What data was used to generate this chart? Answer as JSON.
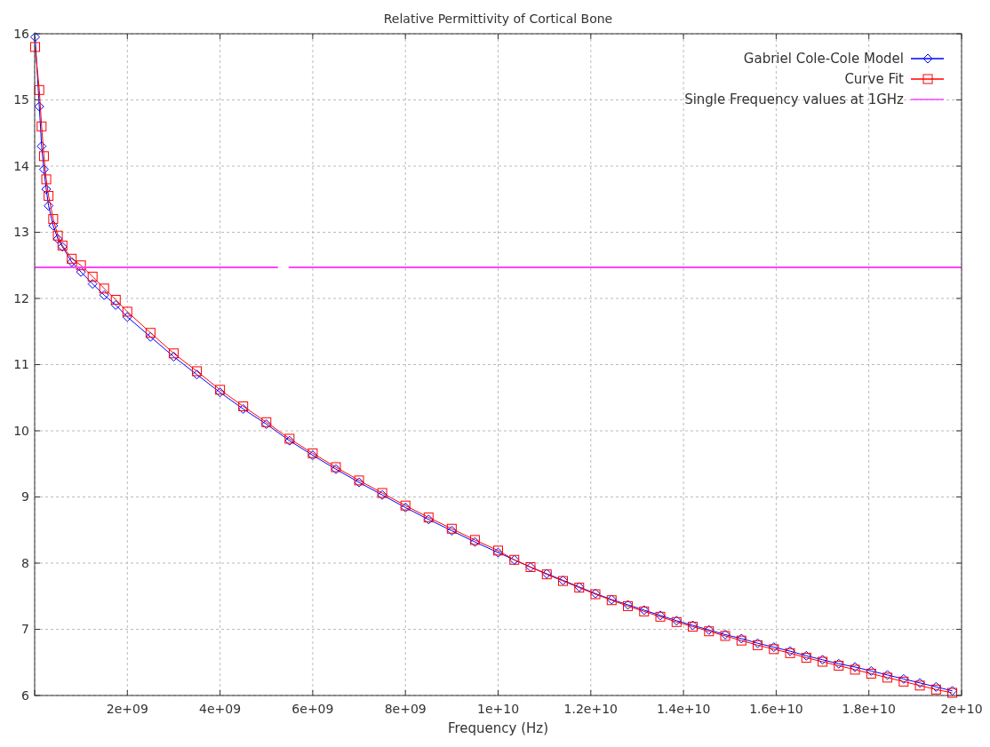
{
  "chart_data": {
    "type": "line",
    "title": "Relative Permittivity of Cortical Bone",
    "xlabel": "Frequency (Hz)",
    "x": [
      10000000.0,
      100000000.0,
      150000000.0,
      200000000.0,
      250000000.0,
      300000000.0,
      400000000.0,
      500000000.0,
      600000000.0,
      800000000.0,
      1000000000.0,
      1250000000.0,
      1500000000.0,
      1750000000.0,
      2000000000.0,
      2500000000.0,
      3000000000.0,
      3500000000.0,
      4000000000.0,
      4500000000.0,
      5000000000.0,
      5500000000.0,
      6000000000.0,
      6500000000.0,
      7000000000.0,
      7500000000.0,
      8000000000.0,
      8500000000.0,
      9000000000.0,
      9500000000.0,
      10000000000.0,
      10350000000.0,
      10700000000.0,
      11050000000.0,
      11400000000.0,
      11750000000.0,
      12100000000.0,
      12450000000.0,
      12800000000.0,
      13150000000.0,
      13500000000.0,
      13850000000.0,
      14200000000.0,
      14550000000.0,
      14900000000.0,
      15250000000.0,
      15600000000.0,
      15950000000.0,
      16300000000.0,
      16650000000.0,
      17000000000.0,
      17350000000.0,
      17700000000.0,
      18050000000.0,
      18400000000.0,
      18750000000.0,
      19100000000.0,
      19450000000.0,
      19800000000.0
    ],
    "series": [
      {
        "name": "Gabriel Cole-Cole Model",
        "color": "#0000ff",
        "marker": "diamond",
        "values": [
          15.95,
          14.9,
          14.3,
          13.95,
          13.65,
          13.4,
          13.1,
          12.9,
          12.78,
          12.55,
          12.4,
          12.22,
          12.05,
          11.9,
          11.72,
          11.42,
          11.12,
          10.85,
          10.58,
          10.33,
          10.1,
          9.85,
          9.63,
          9.42,
          9.22,
          9.03,
          8.84,
          8.66,
          8.49,
          8.32,
          8.16,
          8.05,
          7.94,
          7.84,
          7.74,
          7.64,
          7.54,
          7.45,
          7.37,
          7.29,
          7.21,
          7.13,
          7.06,
          6.99,
          6.92,
          6.86,
          6.79,
          6.73,
          6.67,
          6.6,
          6.54,
          6.48,
          6.43,
          6.37,
          6.31,
          6.25,
          6.19,
          6.13,
          6.07
        ]
      },
      {
        "name": "Curve Fit",
        "color": "#ff0000",
        "marker": "square",
        "values": [
          15.8,
          15.15,
          14.6,
          14.15,
          13.8,
          13.55,
          13.2,
          12.95,
          12.8,
          12.6,
          12.5,
          12.33,
          12.15,
          11.98,
          11.8,
          11.48,
          11.17,
          10.9,
          10.62,
          10.37,
          10.13,
          9.88,
          9.66,
          9.45,
          9.25,
          9.06,
          8.87,
          8.69,
          8.52,
          8.35,
          8.19,
          8.05,
          7.94,
          7.83,
          7.73,
          7.63,
          7.53,
          7.44,
          7.35,
          7.27,
          7.19,
          7.11,
          7.04,
          6.97,
          6.9,
          6.83,
          6.76,
          6.7,
          6.64,
          6.57,
          6.51,
          6.45,
          6.39,
          6.33,
          6.27,
          6.21,
          6.15,
          6.09,
          6.04
        ]
      },
      {
        "name": "Single Frequency values at 1GHz",
        "color": "#ff44ff",
        "marker": "none",
        "x": [
          0,
          5250000000.0,
          5300000000.0,
          5480000000.0,
          20000000000.0
        ],
        "values": [
          12.47,
          12.47,
          null,
          12.47,
          12.47
        ]
      }
    ],
    "xlim": [
      0,
      20000000000.0
    ],
    "ylim": [
      6,
      16
    ],
    "xticks": [
      {
        "value": 0,
        "label": null
      },
      {
        "value": 2000000000.0,
        "label": "2e+09"
      },
      {
        "value": 4000000000.0,
        "label": "4e+09"
      },
      {
        "value": 6000000000.0,
        "label": "6e+09"
      },
      {
        "value": 8000000000.0,
        "label": "8e+09"
      },
      {
        "value": 10000000000.0,
        "label": "1e+10"
      },
      {
        "value": 12000000000.0,
        "label": "1.2e+10"
      },
      {
        "value": 14000000000.0,
        "label": "1.4e+10"
      },
      {
        "value": 16000000000.0,
        "label": "1.6e+10"
      },
      {
        "value": 18000000000.0,
        "label": "1.8e+10"
      },
      {
        "value": 20000000000.0,
        "label": "2e+10"
      }
    ],
    "yticks": [
      6,
      7,
      8,
      9,
      10,
      11,
      12,
      13,
      14,
      15,
      16
    ],
    "grid": true,
    "legend": "top right",
    "line_style": "solid"
  }
}
